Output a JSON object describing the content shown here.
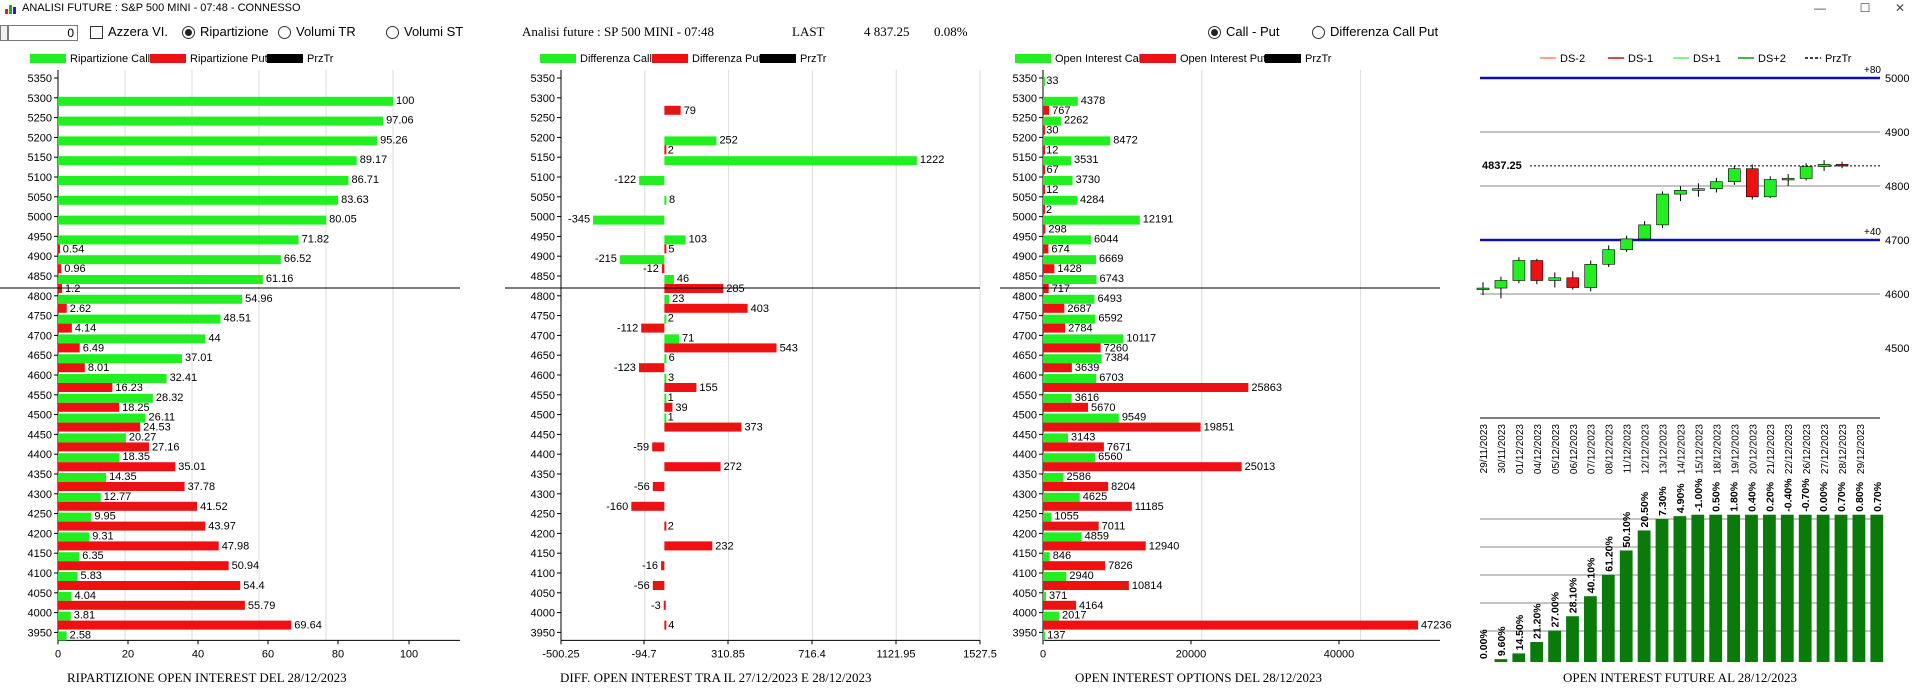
{
  "window": {
    "title": "ANALISI FUTURE : S&P 500 MINI - 07:48 - CONNESSO",
    "minimize": "—",
    "maximize": "☐",
    "close": "✕"
  },
  "toolbar": {
    "input_value": "0",
    "azzera_label": "Azzera VI.",
    "radio_ripartizione": "Ripartizione",
    "radio_volumi_tr": "Volumi TR",
    "radio_volumi_st": "Volumi ST",
    "header_title": "Analisi future : SP 500 MINI - 07:48",
    "last_label": "LAST",
    "last_value": "4 837.25",
    "last_change": "0.08%",
    "radio_call_put": "Call - Put",
    "radio_diff_call_put": "Differenza Call Put"
  },
  "colors": {
    "call": "#22ee22",
    "put": "#ee1111",
    "prz": "#000000",
    "blue": "#1010b0",
    "darkgreen": "#0a7a0a"
  },
  "chart_data": [
    {
      "type": "bar",
      "title": "RIPARTIZIONE OPEN INTEREST DEL 28/12/2023",
      "legend": [
        "Ripartizione Call",
        "Ripartizione Put",
        "PrzTr"
      ],
      "xlim": [
        0,
        120
      ],
      "xticks": [
        "0",
        "20",
        "40",
        "60",
        "80",
        "100"
      ],
      "reference_strike": 4850,
      "categories": [
        5350,
        5300,
        5250,
        5200,
        5150,
        5100,
        5050,
        5000,
        4950,
        4900,
        4850,
        4800,
        4750,
        4700,
        4650,
        4600,
        4550,
        4500,
        4450,
        4400,
        4350,
        4300,
        4250,
        4200,
        4150,
        4100,
        4050,
        4000,
        3950
      ],
      "series": [
        {
          "name": "Ripartizione Call",
          "values": [
            null,
            100,
            97.06,
            95.26,
            89.17,
            86.71,
            83.63,
            80.05,
            71.82,
            66.52,
            61.16,
            54.96,
            48.51,
            44,
            37.01,
            32.41,
            28.32,
            26.11,
            20.27,
            18.35,
            14.35,
            12.77,
            9.95,
            9.31,
            6.35,
            5.83,
            4.04,
            3.81,
            2.58
          ]
        },
        {
          "name": "Ripartizione Put",
          "values": [
            null,
            null,
            null,
            null,
            null,
            null,
            null,
            null,
            0.54,
            0.96,
            1.2,
            2.62,
            4.14,
            6.49,
            8.01,
            16.23,
            18.25,
            24.53,
            27.16,
            35.01,
            37.78,
            41.52,
            43.97,
            47.98,
            50.94,
            54.4,
            55.79,
            69.64,
            null
          ]
        }
      ]
    },
    {
      "type": "bar",
      "title": "DIFF. OPEN INTEREST TRA IL 27/12/2023 E 28/12/2023",
      "legend": [
        "Differenza Call",
        "Differenza Put",
        "PrzTr"
      ],
      "xlim": [
        -500.25,
        1527.5
      ],
      "xticks": [
        "-500.25",
        "-94.7",
        "310.85",
        "716.4",
        "1121.95",
        "1527.5"
      ],
      "reference_strike": 4850,
      "categories": [
        5350,
        5300,
        5250,
        5200,
        5150,
        5100,
        5050,
        5000,
        4950,
        4900,
        4850,
        4800,
        4750,
        4700,
        4650,
        4600,
        4550,
        4500,
        4450,
        4400,
        4350,
        4300,
        4250,
        4200,
        4150,
        4100,
        4050,
        4000,
        3950
      ],
      "series": [
        {
          "name": "Differenza Call",
          "values": [
            null,
            null,
            null,
            252,
            1222,
            -122,
            8,
            -345,
            103,
            -215,
            46,
            23,
            2,
            71,
            6,
            3,
            1,
            1,
            null,
            null,
            null,
            null,
            null,
            null,
            null,
            null,
            null,
            null,
            null
          ]
        },
        {
          "name": "Differenza Put",
          "values": [
            null,
            79,
            null,
            2,
            null,
            null,
            null,
            null,
            5,
            -12,
            285,
            403,
            -112,
            543,
            -123,
            155,
            39,
            373,
            -59,
            272,
            -56,
            -160,
            2,
            232,
            -16,
            -56,
            -3,
            4,
            null
          ]
        }
      ]
    },
    {
      "type": "bar",
      "title": "OPEN INTEREST OPTIONS DEL 28/12/2023",
      "legend": [
        "Open Interest Call",
        "Open Interest Put",
        "PrzTr"
      ],
      "xlim": [
        0,
        50000
      ],
      "xticks": [
        "0",
        "20000",
        "40000"
      ],
      "reference_strike": 4850,
      "categories": [
        5350,
        5300,
        5250,
        5200,
        5150,
        5100,
        5050,
        5000,
        4950,
        4900,
        4850,
        4800,
        4750,
        4700,
        4650,
        4600,
        4550,
        4500,
        4450,
        4400,
        4350,
        4300,
        4250,
        4200,
        4150,
        4100,
        4050,
        4000,
        3950
      ],
      "series": [
        {
          "name": "Open Interest Call",
          "values": [
            33,
            4378,
            2262,
            8472,
            3531,
            3730,
            4284,
            12191,
            6044,
            6669,
            6743,
            6493,
            6592,
            10117,
            7384,
            6703,
            3616,
            9549,
            3143,
            6560,
            2586,
            4625,
            1055,
            4859,
            846,
            2940,
            371,
            2017,
            137
          ]
        },
        {
          "name": "Open Interest Put",
          "values": [
            null,
            767,
            30,
            12,
            67,
            12,
            2,
            298,
            674,
            1428,
            717,
            2687,
            2784,
            7260,
            3639,
            25863,
            5670,
            19851,
            7671,
            25013,
            8204,
            11185,
            7011,
            12940,
            7826,
            10814,
            4164,
            47236,
            null
          ]
        }
      ]
    },
    {
      "type": "candlestick",
      "legend": [
        "DS-2",
        "DS-1",
        "DS+1",
        "DS+2",
        "PrzTr"
      ],
      "ylim": [
        4500,
        5000
      ],
      "yticks": [
        "5000",
        "4900",
        "4800",
        "4700",
        "4600",
        "4500"
      ],
      "level_labels": [
        "+80",
        "+40"
      ],
      "blue_levels": [
        5000,
        4700
      ],
      "last_price": 4837.25,
      "last_price_label": "4837.25",
      "dates": [
        "29/11/2023",
        "30/11/2023",
        "01/12/2023",
        "04/12/2023",
        "05/12/2023",
        "06/12/2023",
        "07/12/2023",
        "08/12/2023",
        "11/12/2023",
        "12/12/2023",
        "13/12/2023",
        "14/12/2023",
        "15/12/2023",
        "18/12/2023",
        "19/12/2023",
        "20/12/2023",
        "21/12/2023",
        "22/12/2023",
        "26/12/2023",
        "27/12/2023",
        "28/12/2023",
        "29/12/2023"
      ],
      "ohlc": [
        [
          4610,
          4622,
          4598,
          4611
        ],
        [
          4611,
          4632,
          4592,
          4625
        ],
        [
          4625,
          4668,
          4620,
          4662
        ],
        [
          4662,
          4665,
          4618,
          4625
        ],
        [
          4625,
          4640,
          4612,
          4630
        ],
        [
          4630,
          4642,
          4608,
          4612
        ],
        [
          4612,
          4662,
          4605,
          4655
        ],
        [
          4655,
          4690,
          4650,
          4682
        ],
        [
          4682,
          4708,
          4678,
          4702
        ],
        [
          4702,
          4735,
          4700,
          4728
        ],
        [
          4728,
          4790,
          4722,
          4785
        ],
        [
          4785,
          4800,
          4772,
          4792
        ],
        [
          4792,
          4805,
          4780,
          4795
        ],
        [
          4795,
          4815,
          4788,
          4808
        ],
        [
          4808,
          4838,
          4802,
          4832
        ],
        [
          4832,
          4840,
          4775,
          4780
        ],
        [
          4780,
          4818,
          4778,
          4812
        ],
        [
          4812,
          4822,
          4800,
          4814
        ],
        [
          4814,
          4842,
          4810,
          4836
        ],
        [
          4836,
          4848,
          4828,
          4840
        ],
        [
          4840,
          4845,
          4833,
          4837
        ],
        null
      ]
    },
    {
      "type": "bar",
      "title": "OPEN INTEREST FUTURE AL 28/12/2023",
      "bar_labels": [
        "0.00%",
        "9.60%",
        "14.50%",
        "21.20%",
        "27.00%",
        "28.10%",
        "40.10%",
        "61.20%",
        "50.10%",
        "20.50%",
        "7.30%",
        "4.90%",
        "-1.00%",
        "0.50%",
        "1.80%",
        "0.40%",
        "0.20%",
        "-0.40%",
        "-0.70%",
        "0.00%",
        "0.70%",
        "0.80%",
        "0.70%"
      ],
      "values": [
        0,
        2,
        6,
        14,
        22,
        32,
        46,
        61,
        78,
        92,
        100,
        102,
        103,
        103,
        103,
        103,
        103,
        103,
        103,
        103,
        103,
        103,
        103
      ]
    }
  ]
}
